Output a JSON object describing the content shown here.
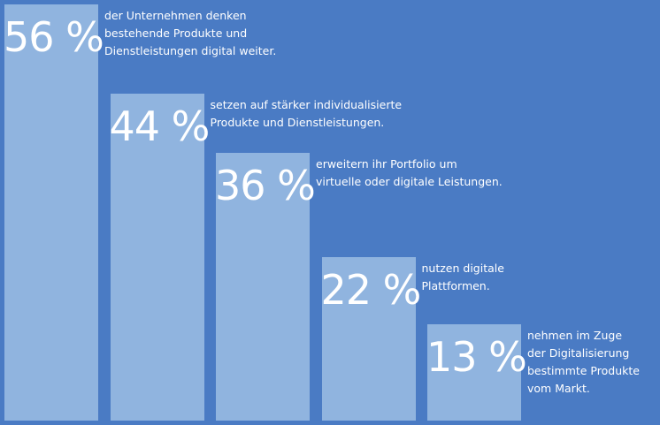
{
  "colors": {
    "background": "#4a7bc4",
    "bar": "#90b4df",
    "text": "#ffffff"
  },
  "chart_data": {
    "type": "bar",
    "title": "",
    "xlabel": "",
    "ylabel": "",
    "ylim": [
      0,
      56
    ],
    "categories": [
      "der Unternehmen denken bestehende Produkte und Dienstleistungen digital weiter.",
      "setzen auf stärker individualisierte Produkte und Dienstleistungen.",
      "erweitern ihr Portfolio um virtuelle oder digitale Leistungen.",
      "nutzen digitale Plattformen.",
      "nehmen im Zuge der Digitalisierung bestimmte Produkte vom Markt."
    ],
    "values": [
      56,
      44,
      36,
      22,
      13
    ],
    "unit": "%",
    "labels": [
      "56 %",
      "44 %",
      "36 %",
      "22 %",
      "13 %"
    ],
    "description_lines": [
      [
        "der Unternehmen denken",
        "bestehende Produkte und",
        "Dienstleistungen digital weiter."
      ],
      [
        "setzen auf stärker individualisierte",
        "Produkte und Dienstleistungen."
      ],
      [
        "erweitern ihr Portfolio um",
        "virtuelle oder digitale Leistungen."
      ],
      [
        "nutzen digitale",
        "Plattformen."
      ],
      [
        "nehmen im Zuge",
        "der Digitalisierung",
        "bestimmte Produkte",
        "vom Markt."
      ]
    ]
  }
}
